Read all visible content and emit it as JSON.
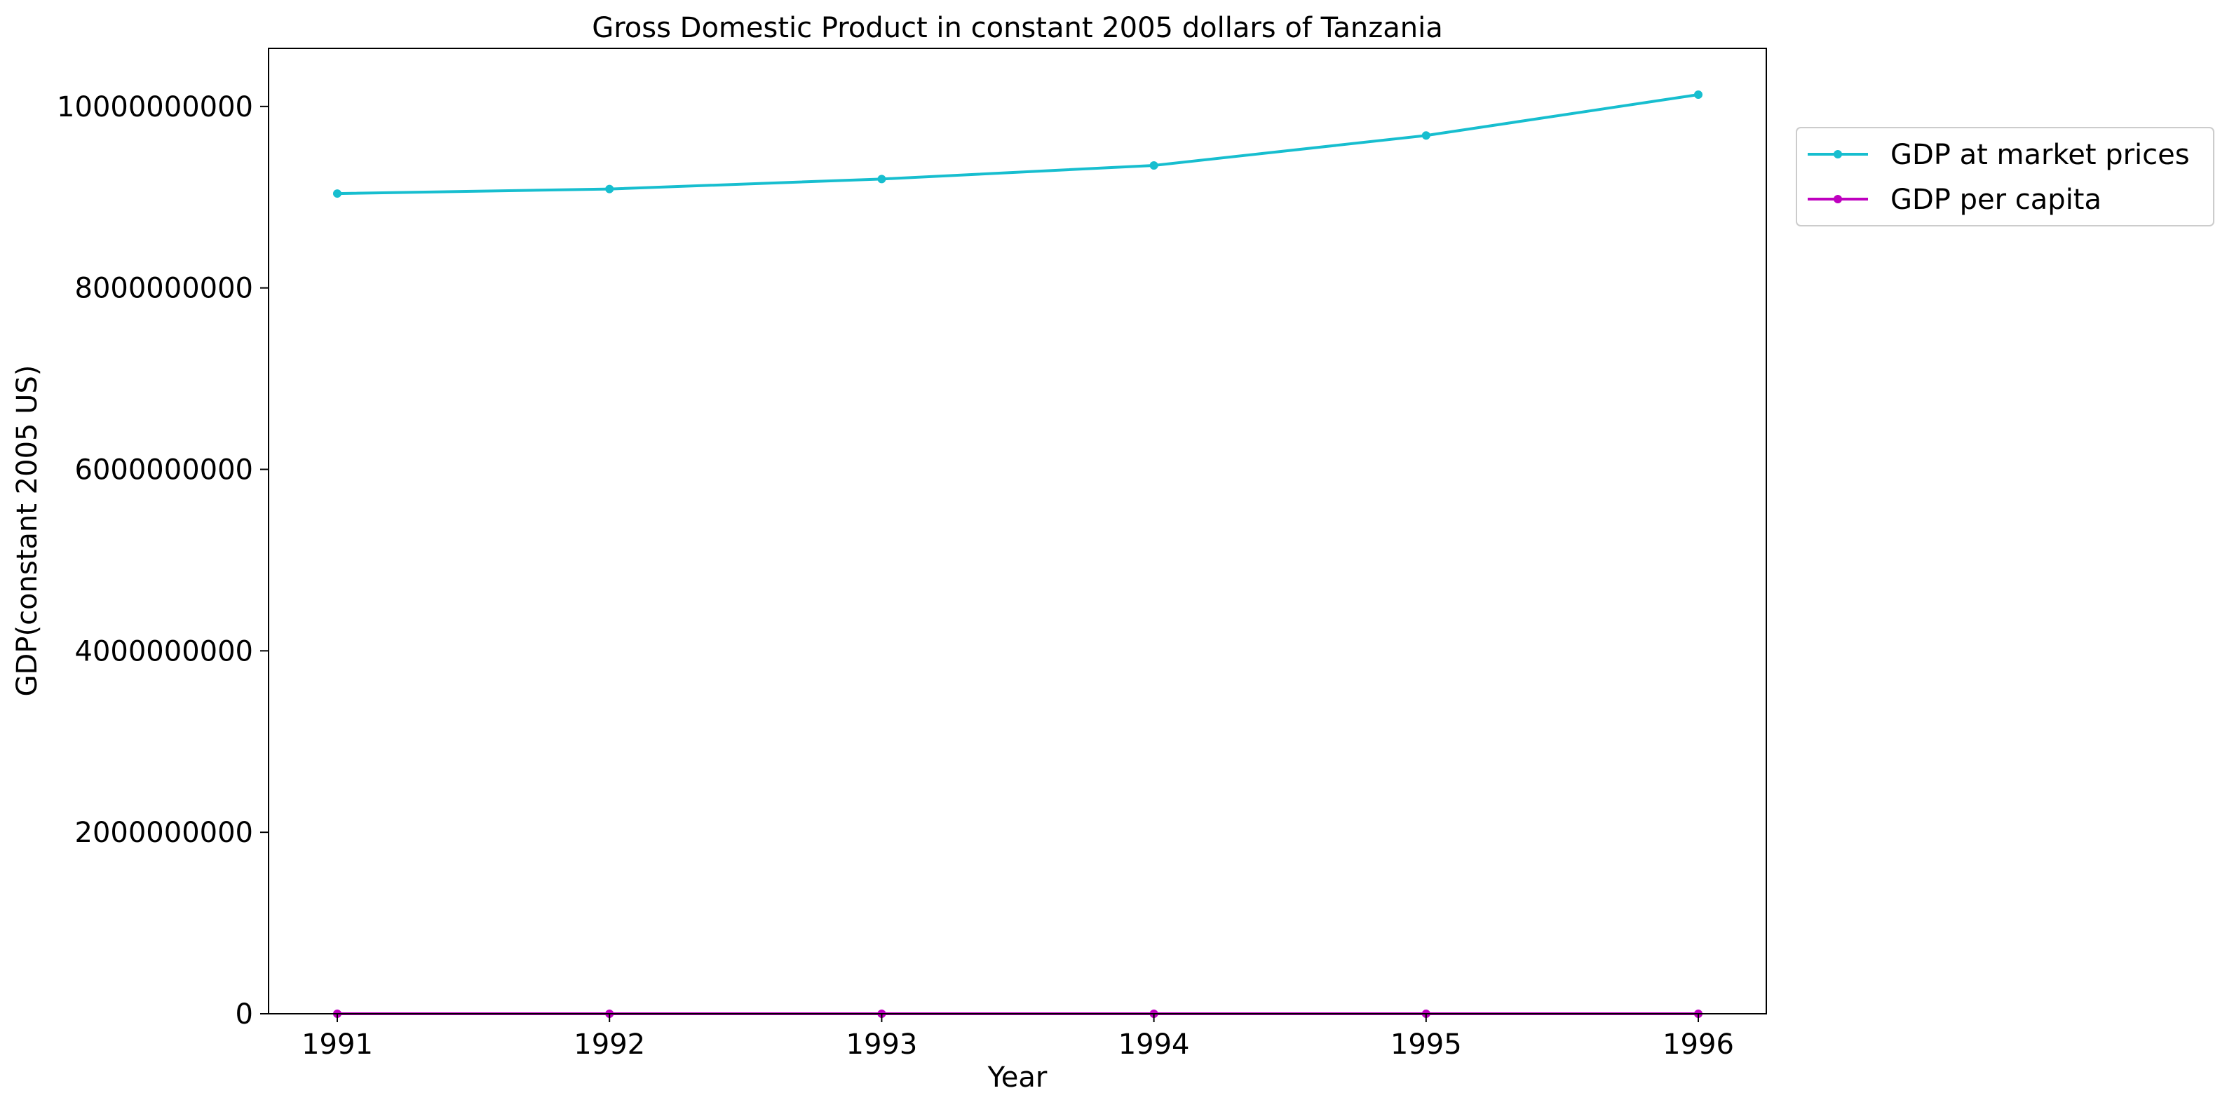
{
  "chart_data": {
    "type": "line",
    "title": "Gross Domestic Product in constant 2005 dollars of Tanzania",
    "xlabel": "Year",
    "ylabel": "GDP(constant 2005 US)",
    "categories": [
      "1991",
      "1992",
      "1993",
      "1994",
      "1995",
      "1996"
    ],
    "y_ticks": [
      "0",
      "2000000000",
      "4000000000",
      "6000000000",
      "8000000000",
      "10000000000"
    ],
    "ylim": [
      0,
      10640000000
    ],
    "grid": false,
    "legend_position": "outside-top-right",
    "series": [
      {
        "name": "GDP at market prices",
        "color": "#17becf",
        "values": [
          9040000000,
          9090000000,
          9200000000,
          9350000000,
          9680000000,
          10130000000
        ]
      },
      {
        "name": "GDP per capita",
        "color": "#bf00bf",
        "values": [
          350,
          340,
          335,
          330,
          335,
          340
        ]
      }
    ]
  }
}
